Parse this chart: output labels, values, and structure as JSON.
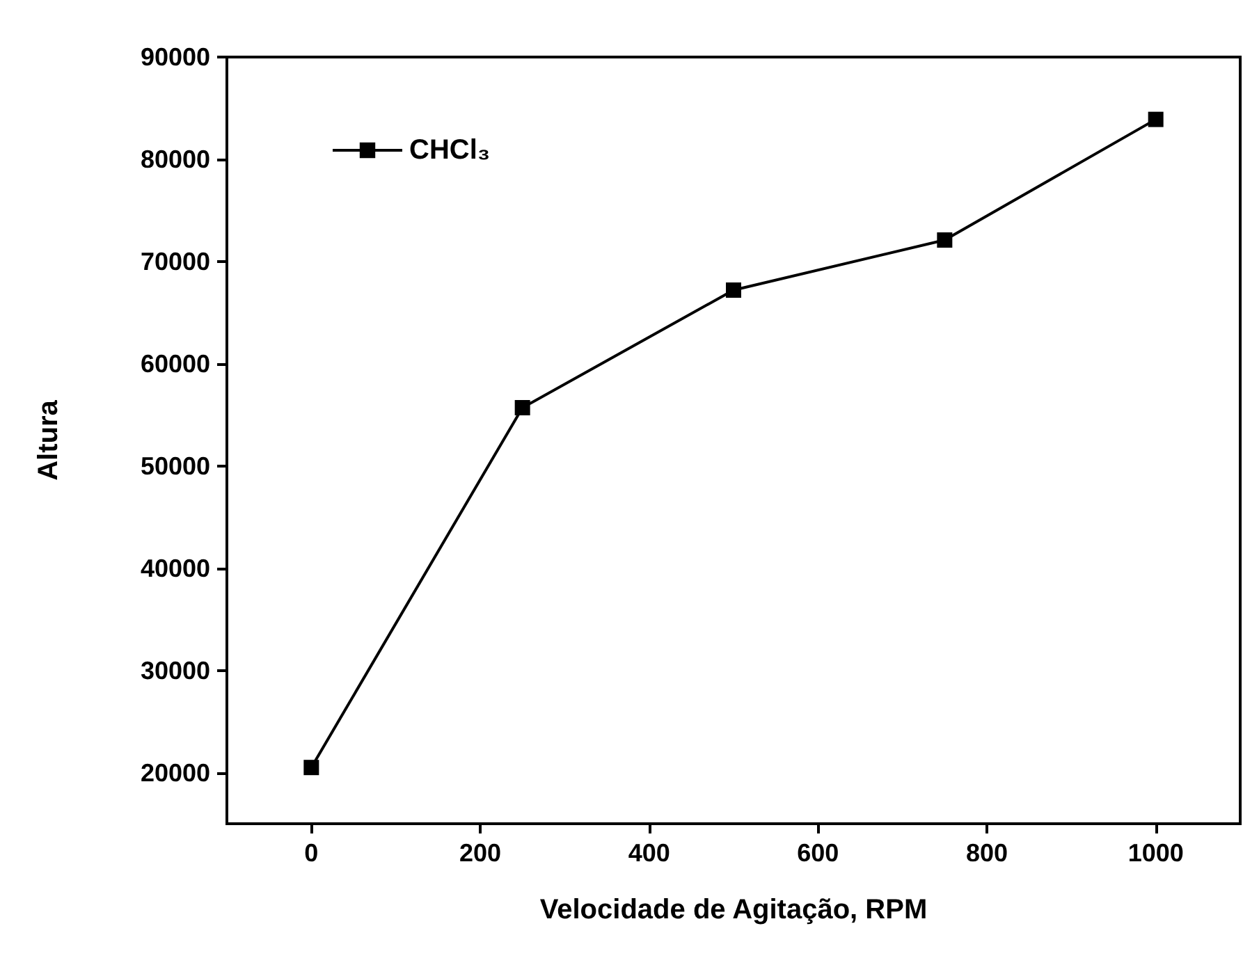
{
  "chart_data": {
    "type": "line",
    "xlabel": "Velocidade de Agitação, RPM",
    "ylabel": "Altura",
    "x": [
      0,
      250,
      500,
      750,
      1000
    ],
    "series": [
      {
        "name": "CHCl₃",
        "color": "#000000",
        "values": [
          20500,
          55700,
          67200,
          72100,
          83900
        ]
      }
    ],
    "xlim": [
      -100,
      1100
    ],
    "xticks": [
      0,
      200,
      400,
      600,
      800,
      1000
    ],
    "ylim": [
      15000,
      90000
    ],
    "yticks": [
      20000,
      30000,
      40000,
      50000,
      60000,
      70000,
      80000,
      90000
    ],
    "grid": false,
    "legend": "top left",
    "marker": "square",
    "line_style": "solid"
  }
}
